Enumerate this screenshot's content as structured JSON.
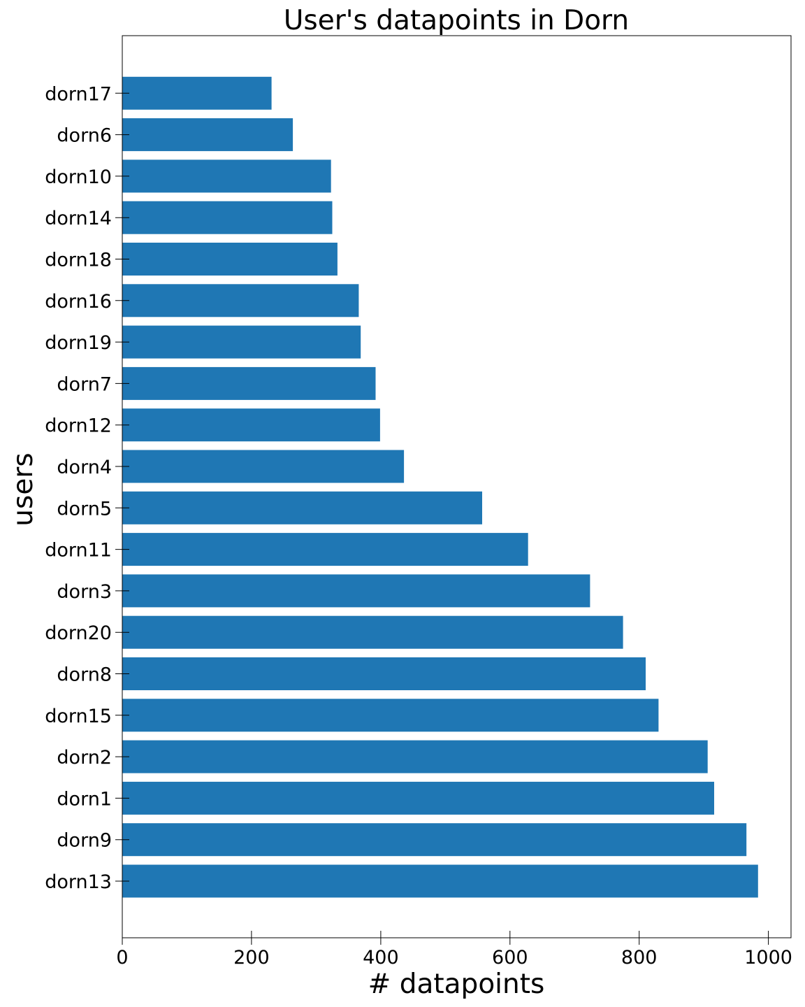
{
  "chart_data": {
    "type": "bar",
    "orientation": "horizontal",
    "title": "User's datapoints in Dorn",
    "xlabel": "# datapoints",
    "ylabel": "users",
    "categories": [
      "dorn13",
      "dorn9",
      "dorn1",
      "dorn2",
      "dorn15",
      "dorn8",
      "dorn20",
      "dorn3",
      "dorn11",
      "dorn5",
      "dorn4",
      "dorn12",
      "dorn7",
      "dorn19",
      "dorn16",
      "dorn18",
      "dorn14",
      "dorn10",
      "dorn6",
      "dorn17"
    ],
    "values": [
      984,
      966,
      916,
      906,
      830,
      810,
      775,
      724,
      628,
      557,
      436,
      399,
      392,
      369,
      366,
      333,
      325,
      323,
      264,
      231
    ],
    "xlim": [
      0,
      1035
    ],
    "xticks": [
      0,
      200,
      400,
      600,
      800,
      1000
    ],
    "xtick_labels": [
      "0",
      "200",
      "400",
      "600",
      "800",
      "1000"
    ],
    "bar_color": "#1f77b4",
    "grid": false,
    "legend": "none"
  }
}
